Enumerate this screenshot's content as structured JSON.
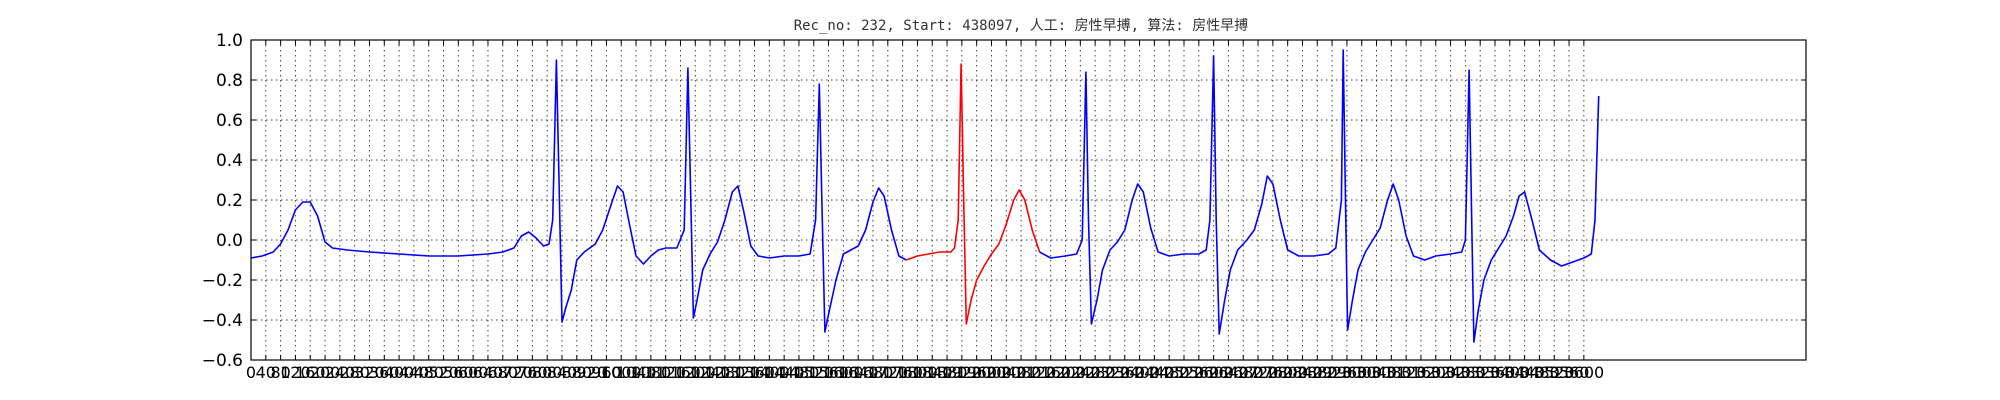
{
  "chart_data": {
    "type": "line",
    "title": "Rec_no: 232, Start: 438097, 人工: 房性早搏, 算法: 房性早搏",
    "xlabel": "",
    "ylabel": "",
    "xlim": [
      0,
      4200
    ],
    "ylim": [
      -0.6,
      1.0
    ],
    "yticks": [
      -0.6,
      -0.4,
      -0.2,
      0.0,
      0.2,
      0.4,
      0.6,
      0.8,
      1.0
    ],
    "ytick_labels": [
      "−0.6",
      "−0.4",
      "−0.2",
      "0.0",
      "0.2",
      "0.4",
      "0.6",
      "0.8",
      "1.0"
    ],
    "xtick_step": 40,
    "xtick_max": 3600,
    "grid": true,
    "colors": {
      "normal": "#0000ff",
      "highlight": "#ff0000"
    },
    "series": [
      {
        "color": "#0000ff",
        "points": [
          [
            0,
            -0.09
          ],
          [
            30,
            -0.08
          ],
          [
            60,
            -0.06
          ],
          [
            80,
            -0.02
          ],
          [
            100,
            0.05
          ],
          [
            120,
            0.15
          ],
          [
            140,
            0.19
          ],
          [
            160,
            0.19
          ],
          [
            180,
            0.12
          ],
          [
            200,
            -0.01
          ],
          [
            220,
            -0.04
          ],
          [
            260,
            -0.05
          ],
          [
            320,
            -0.06
          ],
          [
            400,
            -0.07
          ],
          [
            480,
            -0.08
          ],
          [
            560,
            -0.08
          ],
          [
            640,
            -0.07
          ],
          [
            680,
            -0.06
          ],
          [
            710,
            -0.04
          ],
          [
            730,
            0.02
          ],
          [
            750,
            0.04
          ],
          [
            770,
            0.01
          ],
          [
            790,
            -0.03
          ],
          [
            805,
            -0.02
          ],
          [
            815,
            0.1
          ],
          [
            825,
            0.9
          ],
          [
            832,
            0.3
          ],
          [
            840,
            -0.41
          ],
          [
            850,
            -0.34
          ],
          [
            865,
            -0.25
          ],
          [
            880,
            -0.1
          ],
          [
            900,
            -0.06
          ],
          [
            930,
            -0.02
          ],
          [
            950,
            0.05
          ],
          [
            975,
            0.19
          ],
          [
            990,
            0.27
          ],
          [
            1005,
            0.24
          ],
          [
            1020,
            0.1
          ],
          [
            1040,
            -0.08
          ],
          [
            1060,
            -0.12
          ],
          [
            1080,
            -0.08
          ],
          [
            1100,
            -0.05
          ],
          [
            1120,
            -0.04
          ],
          [
            1150,
            -0.04
          ],
          [
            1170,
            0.05
          ],
          [
            1180,
            0.86
          ],
          [
            1188,
            0.2
          ],
          [
            1195,
            -0.39
          ],
          [
            1205,
            -0.3
          ],
          [
            1220,
            -0.15
          ],
          [
            1240,
            -0.07
          ],
          [
            1260,
            -0.01
          ],
          [
            1280,
            0.1
          ],
          [
            1300,
            0.24
          ],
          [
            1315,
            0.27
          ],
          [
            1330,
            0.15
          ],
          [
            1350,
            -0.03
          ],
          [
            1370,
            -0.08
          ],
          [
            1400,
            -0.09
          ],
          [
            1440,
            -0.08
          ],
          [
            1480,
            -0.08
          ],
          [
            1510,
            -0.07
          ],
          [
            1525,
            0.1
          ],
          [
            1535,
            0.78
          ],
          [
            1543,
            0.1
          ],
          [
            1550,
            -0.46
          ],
          [
            1560,
            -0.37
          ],
          [
            1580,
            -0.2
          ],
          [
            1600,
            -0.07
          ],
          [
            1620,
            -0.05
          ],
          [
            1640,
            -0.03
          ],
          [
            1660,
            0.05
          ],
          [
            1680,
            0.19
          ],
          [
            1695,
            0.26
          ],
          [
            1710,
            0.22
          ],
          [
            1730,
            0.05
          ],
          [
            1750,
            -0.08
          ],
          [
            1770,
            -0.1
          ]
        ]
      },
      {
        "color": "#ff0000",
        "points": [
          [
            1770,
            -0.1
          ],
          [
            1800,
            -0.08
          ],
          [
            1830,
            -0.07
          ],
          [
            1860,
            -0.06
          ],
          [
            1890,
            -0.06
          ],
          [
            1900,
            -0.04
          ],
          [
            1910,
            0.1
          ],
          [
            1918,
            0.88
          ],
          [
            1925,
            0.2
          ],
          [
            1932,
            -0.42
          ],
          [
            1945,
            -0.3
          ],
          [
            1960,
            -0.2
          ],
          [
            1980,
            -0.13
          ],
          [
            2000,
            -0.07
          ],
          [
            2020,
            -0.02
          ],
          [
            2040,
            0.08
          ],
          [
            2060,
            0.2
          ],
          [
            2075,
            0.25
          ],
          [
            2090,
            0.2
          ],
          [
            2110,
            0.05
          ],
          [
            2130,
            -0.06
          ]
        ]
      },
      {
        "color": "#0000ff",
        "points": [
          [
            2130,
            -0.06
          ],
          [
            2160,
            -0.09
          ],
          [
            2200,
            -0.08
          ],
          [
            2230,
            -0.07
          ],
          [
            2245,
            0.0
          ],
          [
            2255,
            0.84
          ],
          [
            2262,
            0.1
          ],
          [
            2270,
            -0.42
          ],
          [
            2285,
            -0.3
          ],
          [
            2300,
            -0.15
          ],
          [
            2320,
            -0.05
          ],
          [
            2340,
            -0.01
          ],
          [
            2360,
            0.05
          ],
          [
            2380,
            0.2
          ],
          [
            2395,
            0.28
          ],
          [
            2410,
            0.24
          ],
          [
            2430,
            0.06
          ],
          [
            2450,
            -0.06
          ],
          [
            2480,
            -0.08
          ],
          [
            2520,
            -0.07
          ],
          [
            2560,
            -0.07
          ],
          [
            2580,
            -0.05
          ],
          [
            2590,
            0.1
          ],
          [
            2600,
            0.92
          ],
          [
            2607,
            0.1
          ],
          [
            2615,
            -0.47
          ],
          [
            2630,
            -0.3
          ],
          [
            2645,
            -0.15
          ],
          [
            2665,
            -0.05
          ],
          [
            2690,
            0.0
          ],
          [
            2710,
            0.05
          ],
          [
            2730,
            0.18
          ],
          [
            2745,
            0.32
          ],
          [
            2760,
            0.28
          ],
          [
            2780,
            0.1
          ],
          [
            2800,
            -0.05
          ],
          [
            2830,
            -0.08
          ],
          [
            2870,
            -0.08
          ],
          [
            2910,
            -0.07
          ],
          [
            2930,
            -0.04
          ],
          [
            2945,
            0.2
          ],
          [
            2950,
            0.95
          ],
          [
            2957,
            0.1
          ],
          [
            2962,
            -0.45
          ],
          [
            2975,
            -0.3
          ],
          [
            2990,
            -0.15
          ],
          [
            3010,
            -0.06
          ],
          [
            3030,
            0.0
          ],
          [
            3050,
            0.06
          ],
          [
            3070,
            0.2
          ],
          [
            3085,
            0.28
          ],
          [
            3100,
            0.2
          ],
          [
            3120,
            0.02
          ],
          [
            3140,
            -0.08
          ],
          [
            3170,
            -0.1
          ],
          [
            3200,
            -0.08
          ],
          [
            3240,
            -0.07
          ],
          [
            3270,
            -0.06
          ],
          [
            3280,
            0.0
          ],
          [
            3290,
            0.85
          ],
          [
            3297,
            0.1
          ],
          [
            3303,
            -0.51
          ],
          [
            3315,
            -0.35
          ],
          [
            3330,
            -0.2
          ],
          [
            3350,
            -0.1
          ],
          [
            3370,
            -0.04
          ],
          [
            3390,
            0.02
          ],
          [
            3410,
            0.12
          ],
          [
            3425,
            0.22
          ],
          [
            3440,
            0.24
          ],
          [
            3460,
            0.1
          ],
          [
            3480,
            -0.05
          ],
          [
            3510,
            -0.1
          ],
          [
            3540,
            -0.13
          ],
          [
            3570,
            -0.11
          ],
          [
            3600,
            -0.09
          ],
          [
            3620,
            -0.07
          ],
          [
            3630,
            0.1
          ],
          [
            3640,
            0.72
          ]
        ]
      }
    ]
  }
}
